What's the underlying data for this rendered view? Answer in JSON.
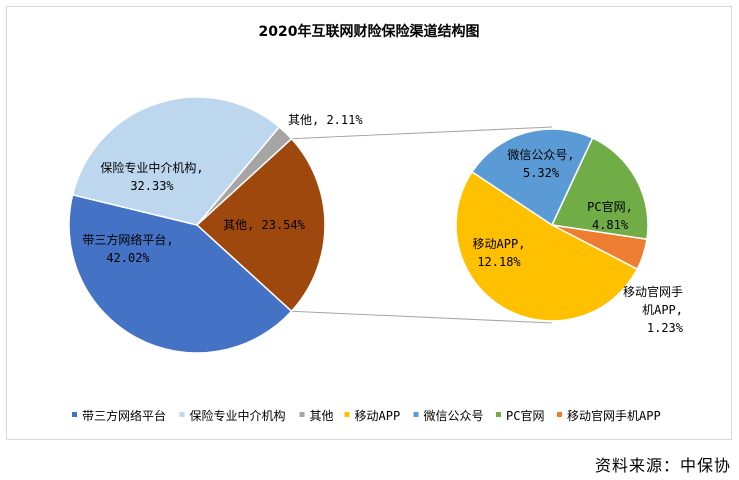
{
  "chart_data": {
    "type": "pie",
    "subtype": "pie-of-pie",
    "title": "2020年互联网财险保险渠道结构图",
    "main": {
      "slices": [
        {
          "name": "带三方网络平台",
          "value": 42.02,
          "label": "带三方网络平台,",
          "value_label": "42.02%",
          "color": "#4472c4"
        },
        {
          "name": "保险专业中介机构",
          "value": 32.33,
          "label": "保险专业中介机构,",
          "value_label": "32.33%",
          "color": "#bdd7ee"
        },
        {
          "name": "其他",
          "value": 2.11,
          "label": "其他, 2.11%",
          "value_label": "",
          "color": "#a5a5a5"
        },
        {
          "name": "其他",
          "value": 23.54,
          "label": "其他, 23.54%",
          "value_label": "",
          "color": "#9e480e"
        }
      ]
    },
    "secondary": {
      "slices": [
        {
          "name": "移动APP",
          "value": 12.18,
          "label": "移动APP,",
          "value_label": "12.18%",
          "color": "#ffc000"
        },
        {
          "name": "微信公众号",
          "value": 5.32,
          "label": "微信公众号,",
          "value_label": "5.32%",
          "color": "#5b9bd5"
        },
        {
          "name": "PC官网",
          "value": 4.81,
          "label": "PC官网,",
          "value_label": "4.81%",
          "color": "#70ad47"
        },
        {
          "name": "移动官网手机APP",
          "value": 1.23,
          "label": "移动官网手",
          "label2": "机APP,",
          "value_label": "1.23%",
          "color": "#ed7d31"
        }
      ]
    },
    "legend": {
      "position": "bottom",
      "items": [
        {
          "name": "带三方网络平台",
          "color": "#4472c4"
        },
        {
          "name": "保险专业中介机构",
          "color": "#bdd7ee"
        },
        {
          "name": "其他",
          "color": "#a5a5a5"
        },
        {
          "name": "移动APP",
          "color": "#ffc000"
        },
        {
          "name": "微信公众号",
          "color": "#5b9bd5"
        },
        {
          "name": "PC官网",
          "color": "#70ad47"
        },
        {
          "name": "移动官网手机APP",
          "color": "#ed7d31"
        }
      ]
    }
  },
  "source": "资料来源：中保协"
}
